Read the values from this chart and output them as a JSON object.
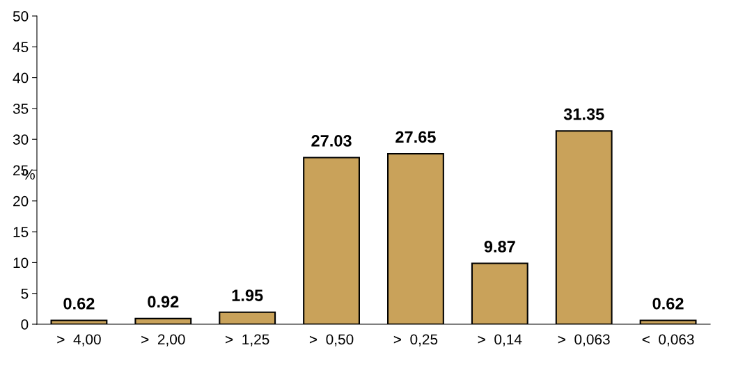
{
  "chart_data": {
    "type": "bar",
    "ylabel": "%",
    "categories": [
      ">  4,00",
      ">  2,00",
      ">  1,25",
      ">  0,50",
      ">  0,25",
      ">  0,14",
      ">  0,063",
      "<  0,063"
    ],
    "values": [
      0.62,
      0.92,
      1.95,
      27.03,
      27.65,
      9.87,
      31.35,
      0.62
    ],
    "color": "#c9a25a",
    "ylim": [
      0,
      50
    ],
    "yticks": [
      0,
      5,
      10,
      15,
      20,
      25,
      30,
      35,
      40,
      45,
      50
    ],
    "data_labels": true,
    "grid": false,
    "legend": false
  }
}
